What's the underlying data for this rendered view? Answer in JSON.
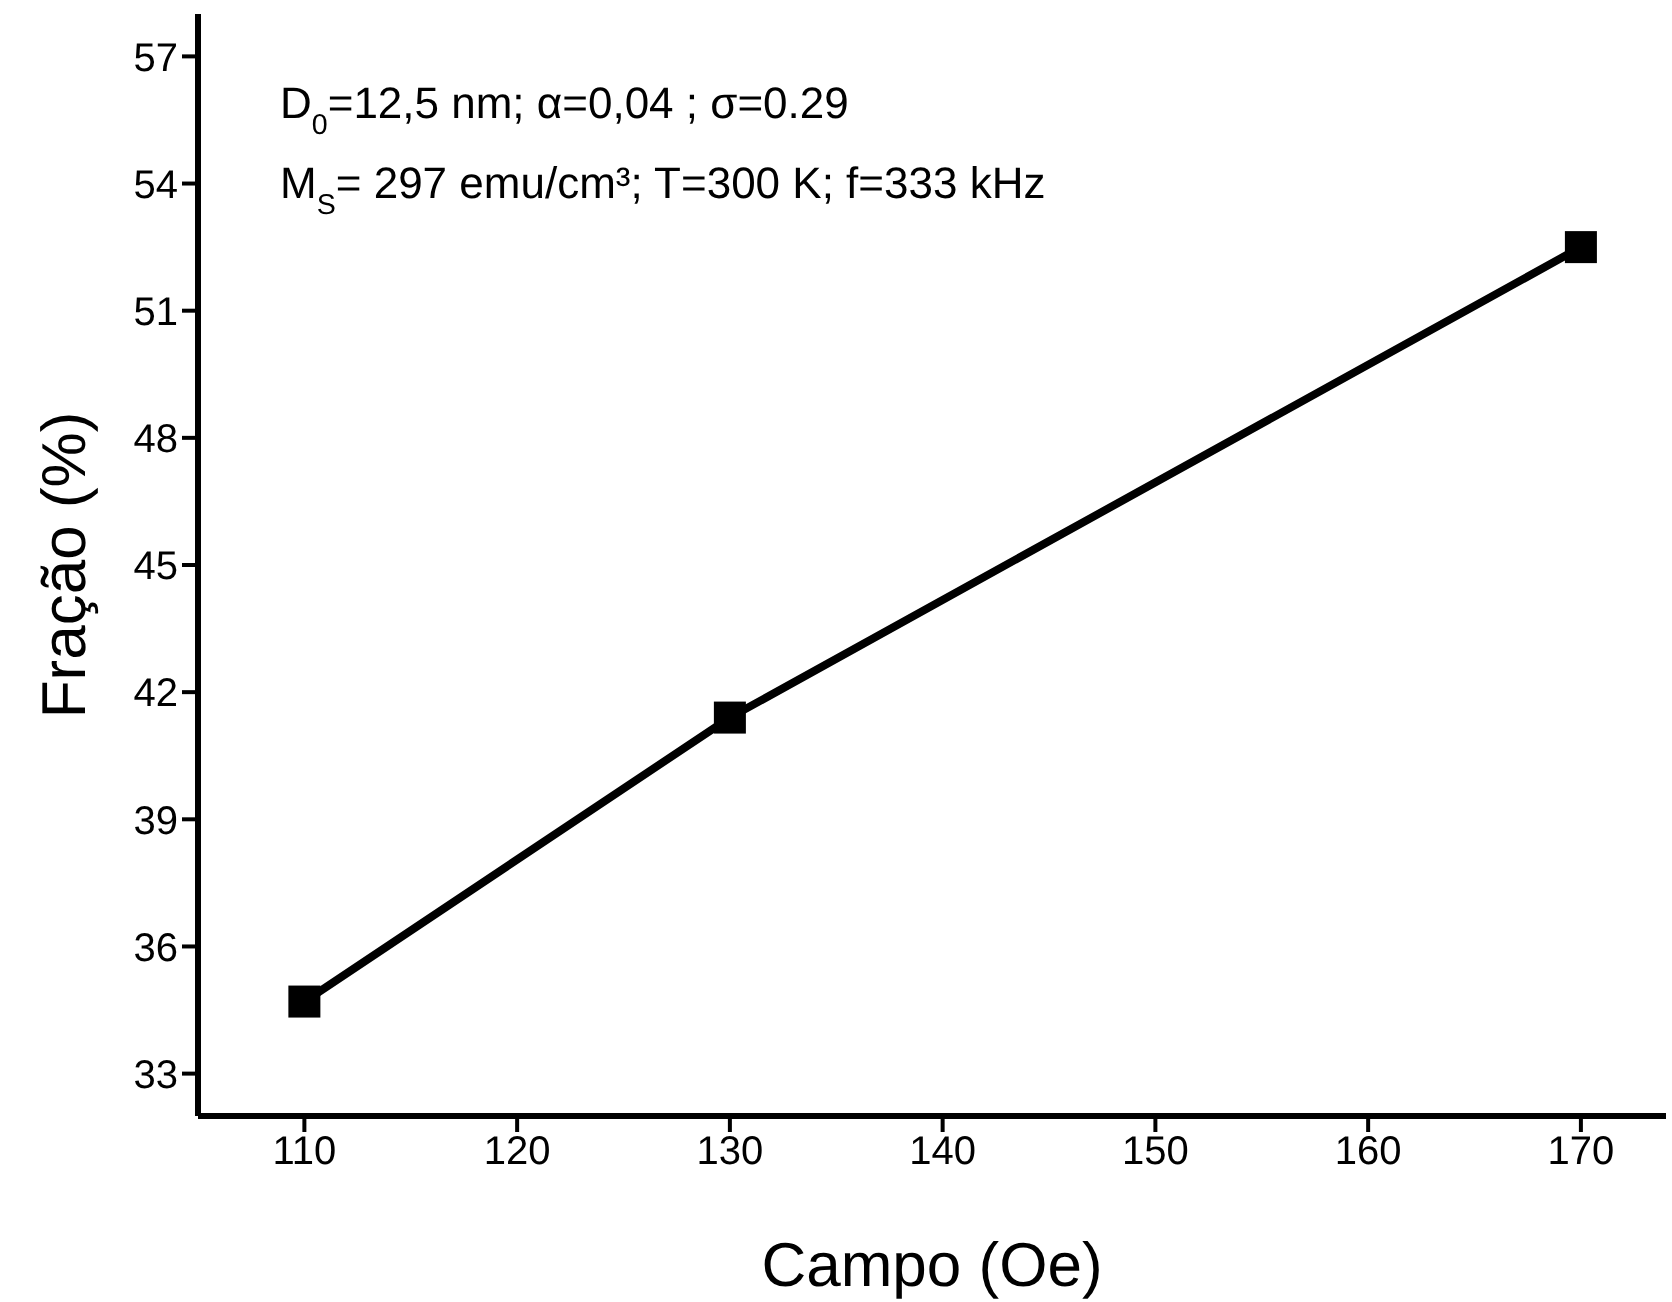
{
  "chart_data": {
    "type": "line",
    "xlabel": "Campo (Oe)",
    "ylabel": "Fração  (%)",
    "x": [
      110,
      130,
      170
    ],
    "series": [
      {
        "color": "#000000",
        "values": [
          34.7,
          41.4,
          52.5
        ]
      }
    ],
    "xlim": [
      105,
      174
    ],
    "xticks": [
      110,
      120,
      130,
      140,
      150,
      160,
      170
    ],
    "ylim": [
      32,
      58
    ],
    "yticks": [
      33,
      36,
      39,
      42,
      45,
      48,
      51,
      54,
      57
    ],
    "marker": "square",
    "line_style": "solid",
    "grid": false,
    "annotations": [
      "D$_{0}$=12,5 nm; α=0,04 ; σ=0.29",
      "M$_{S}$= 297 emu/cm³; T=300 K; f=333 kHz"
    ]
  }
}
